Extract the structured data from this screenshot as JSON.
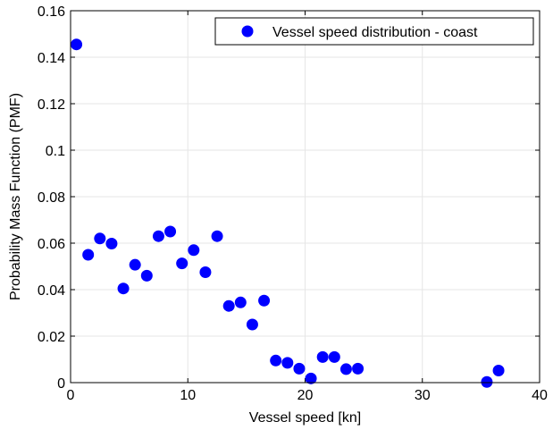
{
  "chart_data": {
    "type": "scatter",
    "xlabel": "Vessel speed [kn]",
    "ylabel": "Probability Mass Function (PMF)",
    "xlim": [
      0,
      40
    ],
    "ylim": [
      0,
      0.16
    ],
    "x_ticks": [
      0,
      10,
      20,
      30,
      40
    ],
    "y_ticks": [
      0,
      0.02,
      0.04,
      0.06,
      0.08,
      0.1,
      0.12,
      0.14,
      0.16
    ],
    "x_tick_labels": [
      "0",
      "10",
      "20",
      "30",
      "40"
    ],
    "y_tick_labels": [
      "0",
      "0.02",
      "0.04",
      "0.06",
      "0.08",
      "0.1",
      "0.12",
      "0.14",
      "0.16"
    ],
    "grid": true,
    "legend_position": "top-right",
    "series": [
      {
        "name": "Vessel speed distribution - coast",
        "color": "#0000ff",
        "marker": "circle",
        "points": [
          {
            "x": 0.5,
            "y": 0.1455
          },
          {
            "x": 1.5,
            "y": 0.055
          },
          {
            "x": 2.5,
            "y": 0.062
          },
          {
            "x": 3.5,
            "y": 0.0598
          },
          {
            "x": 4.5,
            "y": 0.0405
          },
          {
            "x": 5.5,
            "y": 0.0507
          },
          {
            "x": 6.5,
            "y": 0.046
          },
          {
            "x": 7.5,
            "y": 0.063
          },
          {
            "x": 8.5,
            "y": 0.065
          },
          {
            "x": 9.5,
            "y": 0.0513
          },
          {
            "x": 10.5,
            "y": 0.057
          },
          {
            "x": 11.5,
            "y": 0.0475
          },
          {
            "x": 12.5,
            "y": 0.063
          },
          {
            "x": 13.5,
            "y": 0.033
          },
          {
            "x": 14.5,
            "y": 0.0345
          },
          {
            "x": 15.5,
            "y": 0.025
          },
          {
            "x": 16.5,
            "y": 0.0353
          },
          {
            "x": 17.5,
            "y": 0.0095
          },
          {
            "x": 18.5,
            "y": 0.0085
          },
          {
            "x": 19.5,
            "y": 0.006
          },
          {
            "x": 20.5,
            "y": 0.0018
          },
          {
            "x": 21.5,
            "y": 0.011
          },
          {
            "x": 22.5,
            "y": 0.011
          },
          {
            "x": 23.5,
            "y": 0.0058
          },
          {
            "x": 24.5,
            "y": 0.006
          },
          {
            "x": 35.5,
            "y": 0.0003
          },
          {
            "x": 36.5,
            "y": 0.0052
          }
        ]
      }
    ]
  }
}
